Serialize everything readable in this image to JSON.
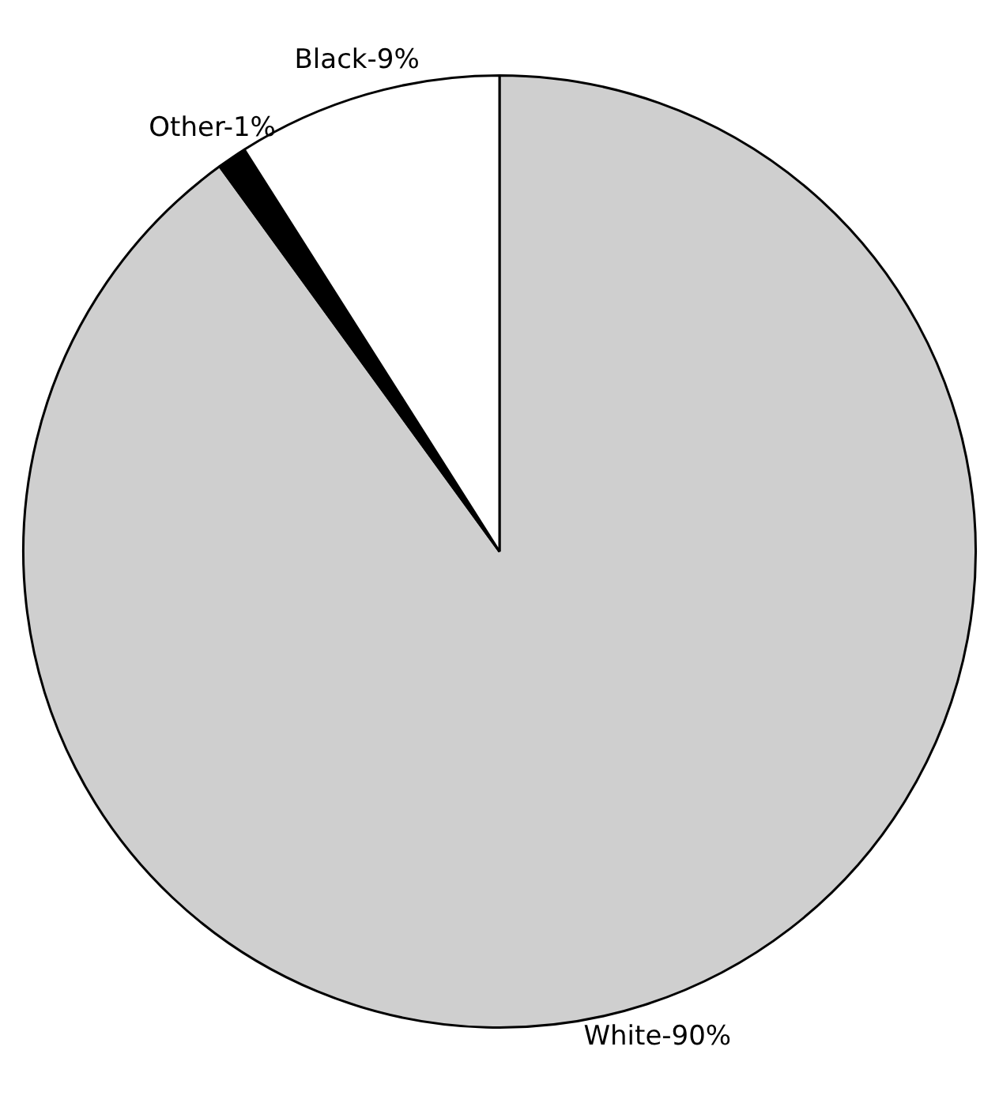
{
  "chart_data": {
    "type": "pie",
    "categories": [
      "White-90%",
      "Other-1%",
      "Black-9%"
    ],
    "values": [
      90,
      1,
      9
    ],
    "colors": [
      "#cfcfcf",
      "#000000",
      "#ffffff"
    ],
    "legend": false
  }
}
